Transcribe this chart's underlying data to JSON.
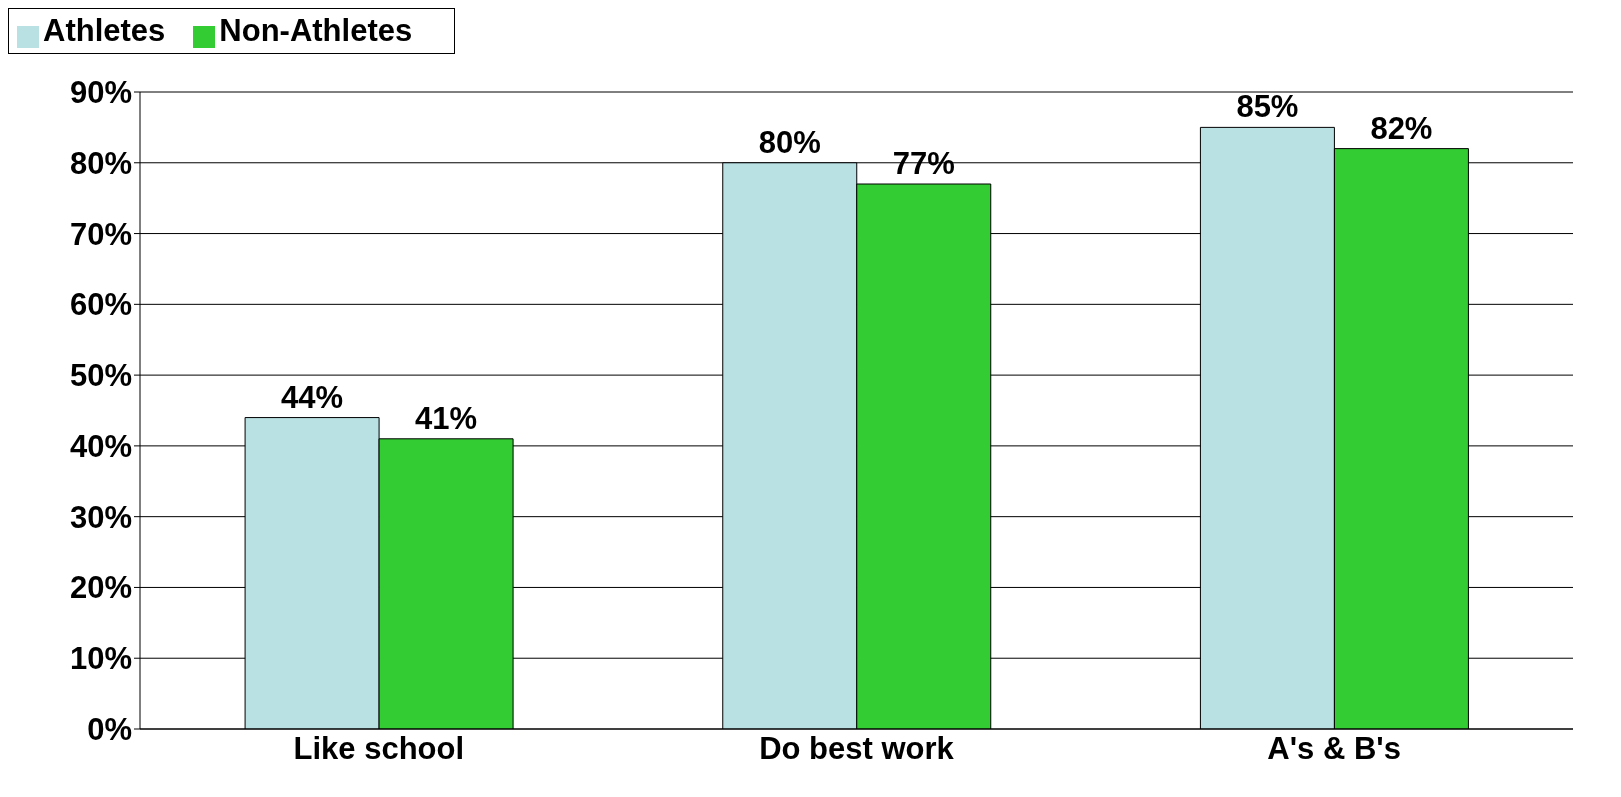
{
  "chart_data": {
    "type": "bar",
    "categories": [
      "Like school",
      "Do best work",
      "A's & B's"
    ],
    "series": [
      {
        "name": "Athletes",
        "color": "#b9e0e3",
        "values": [
          44,
          80,
          85
        ],
        "value_labels": [
          "44%",
          "80%",
          "85%"
        ]
      },
      {
        "name": "Non-Athletes",
        "color": "#33cc33",
        "values": [
          41,
          77,
          82
        ],
        "value_labels": [
          "41%",
          "77%",
          "82%"
        ]
      }
    ],
    "ylim": [
      0,
      90
    ],
    "yticks": [
      {
        "value": 0,
        "label": "0%"
      },
      {
        "value": 10,
        "label": "10%"
      },
      {
        "value": 20,
        "label": "20%"
      },
      {
        "value": 30,
        "label": "30%"
      },
      {
        "value": 40,
        "label": "40%"
      },
      {
        "value": 50,
        "label": "50%"
      },
      {
        "value": 60,
        "label": "60%"
      },
      {
        "value": 70,
        "label": "70%"
      },
      {
        "value": 80,
        "label": "80%"
      },
      {
        "value": 90,
        "label": "90%"
      }
    ],
    "grid": "y",
    "legend": "top left"
  }
}
